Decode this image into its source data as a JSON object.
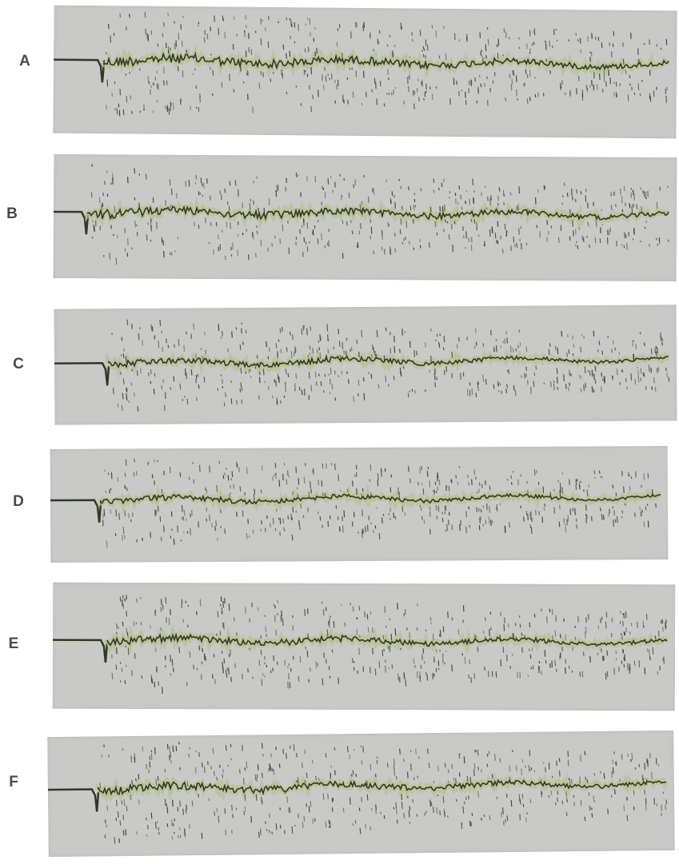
{
  "figure": {
    "panels": [
      {
        "label": "A"
      },
      {
        "label": "B"
      },
      {
        "label": "C"
      },
      {
        "label": "D"
      },
      {
        "label": "E"
      },
      {
        "label": "F"
      }
    ],
    "colors": {
      "background": "#ffffff",
      "strip": "#c9c9c8",
      "trace": "#2f3a22",
      "trace_glow": "#b7c08a",
      "label": "#4a4a4a"
    }
  }
}
